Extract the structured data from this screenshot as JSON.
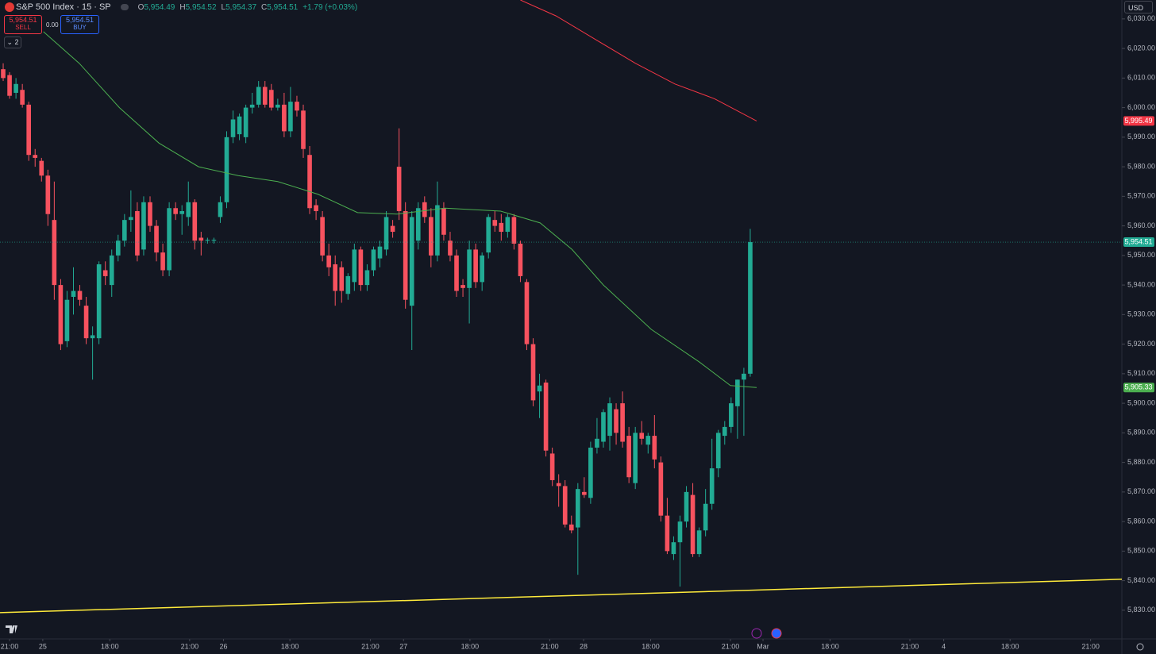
{
  "chart_data": {
    "type": "candlestick",
    "title": "S&P 500 Index · 15 · SP",
    "ohlc_legend": {
      "o_label": "O",
      "o": "5,954.49",
      "h_label": "H",
      "h": "5,954.52",
      "l_label": "L",
      "l": "5,954.37",
      "c_label": "C",
      "c": "5,954.51",
      "change": "+1.79 (+0.03%)"
    },
    "sell": {
      "price": "5,954.51",
      "label": "SELL"
    },
    "spread": "0.00",
    "buy": {
      "price": "5,954.51",
      "label": "BUY"
    },
    "indicators_toggle": "2",
    "currency": "USD",
    "up_color": "#22ab94",
    "down_color": "#f7525f",
    "xlim": [
      -0.5,
      175.2
    ],
    "ylim": [
      5820.3,
      6036.4
    ],
    "yticks": [
      {
        "value": 6030,
        "label": "6,030.00"
      },
      {
        "value": 6020,
        "label": "6,020.00"
      },
      {
        "value": 6010,
        "label": "6,010.00"
      },
      {
        "value": 6000,
        "label": "6,000.00"
      },
      {
        "value": 5990,
        "label": "5,990.00"
      },
      {
        "value": 5980,
        "label": "5,980.00"
      },
      {
        "value": 5970,
        "label": "5,970.00"
      },
      {
        "value": 5960,
        "label": "5,960.00"
      },
      {
        "value": 5950,
        "label": "5,950.00"
      },
      {
        "value": 5940,
        "label": "5,940.00"
      },
      {
        "value": 5930,
        "label": "5,930.00"
      },
      {
        "value": 5920,
        "label": "5,920.00"
      },
      {
        "value": 5910,
        "label": "5,910.00"
      },
      {
        "value": 5900,
        "label": "5,900.00"
      },
      {
        "value": 5890,
        "label": "5,890.00"
      },
      {
        "value": 5880,
        "label": "5,880.00"
      },
      {
        "value": 5870,
        "label": "5,870.00"
      },
      {
        "value": 5860,
        "label": "5,860.00"
      },
      {
        "value": 5850,
        "label": "5,850.00"
      },
      {
        "value": 5840,
        "label": "5,840.00"
      },
      {
        "value": 5830,
        "label": "5,830.00"
      }
    ],
    "xticks": [
      {
        "value": 1.0,
        "label": "21:00"
      },
      {
        "value": 6.2,
        "label": "25"
      },
      {
        "value": 16.7,
        "label": "18:00"
      },
      {
        "value": 29.2,
        "label": "21:00"
      },
      {
        "value": 34.5,
        "label": "26"
      },
      {
        "value": 44.9,
        "label": "18:00"
      },
      {
        "value": 57.5,
        "label": "21:00"
      },
      {
        "value": 62.7,
        "label": "27"
      },
      {
        "value": 73.1,
        "label": "18:00"
      },
      {
        "value": 85.6,
        "label": "21:00"
      },
      {
        "value": 90.9,
        "label": "28"
      },
      {
        "value": 101.4,
        "label": "18:00"
      },
      {
        "value": 113.9,
        "label": "21:00"
      },
      {
        "value": 119,
        "label": "Mar"
      },
      {
        "value": 129.5,
        "label": "18:00"
      },
      {
        "value": 142,
        "label": "21:00"
      },
      {
        "value": 147.3,
        "label": "4"
      },
      {
        "value": 157.7,
        "label": "18:00"
      },
      {
        "value": 170.3,
        "label": "21:00"
      }
    ],
    "candles": [
      [
        6013,
        6015,
        6009,
        6010
      ],
      [
        6011,
        6012,
        6003,
        6004
      ],
      [
        6005,
        6010,
        6003,
        6008
      ],
      [
        6006,
        6008,
        6000,
        6001
      ],
      [
        6001,
        6002,
        5982,
        5984
      ],
      [
        5984,
        5986,
        5980,
        5983
      ],
      [
        5982,
        5983,
        5975,
        5977
      ],
      [
        5977,
        5979,
        5960,
        5964
      ],
      [
        5962,
        5975,
        5935,
        5940
      ],
      [
        5940,
        5942,
        5918,
        5920
      ],
      [
        5921,
        5938,
        5919,
        5935
      ],
      [
        5936,
        5946,
        5930,
        5938
      ],
      [
        5938,
        5940,
        5933,
        5935
      ],
      [
        5933,
        5936,
        5920,
        5922
      ],
      [
        5922,
        5926,
        5908,
        5923
      ],
      [
        5922,
        5948,
        5920,
        5947
      ],
      [
        5945,
        5948,
        5940,
        5943
      ],
      [
        5940,
        5952,
        5936,
        5950
      ],
      [
        5950,
        5957,
        5948,
        5955
      ],
      [
        5955,
        5964,
        5953,
        5962
      ],
      [
        5962,
        5972,
        5958,
        5963
      ],
      [
        5965,
        5968,
        5948,
        5950
      ],
      [
        5952,
        5970,
        5950,
        5968
      ],
      [
        5968,
        5970,
        5958,
        5960
      ],
      [
        5960,
        5962,
        5948,
        5951
      ],
      [
        5951,
        5954,
        5943,
        5945
      ],
      [
        5945,
        5968,
        5943,
        5966
      ],
      [
        5966,
        5968,
        5962,
        5964
      ],
      [
        5964,
        5967,
        5957,
        5965
      ],
      [
        5963,
        5975,
        5960,
        5968
      ],
      [
        5968,
        5969,
        5952,
        5955
      ],
      [
        5956,
        5958,
        5950,
        5955
      ],
      [
        5955,
        5956,
        5954,
        5955.3
      ],
      [
        5955,
        5956,
        5954,
        5955.3
      ],
      [
        5963,
        5970,
        5961,
        5968
      ],
      [
        5968,
        5992,
        5966,
        5990
      ],
      [
        5990,
        5999,
        5988,
        5996
      ],
      [
        5991,
        5998,
        5989,
        5997
      ],
      [
        5990,
        6001,
        5988,
        6000
      ],
      [
        6000,
        6005,
        5998,
        6001
      ],
      [
        6001,
        6009,
        6000,
        6007
      ],
      [
        6007,
        6009,
        6000,
        6001
      ],
      [
        6006,
        6008,
        5999,
        6000
      ],
      [
        6000,
        6003,
        5999,
        6001
      ],
      [
        6001,
        6005,
        5990,
        5992
      ],
      [
        5992,
        6007,
        5990,
        6002
      ],
      [
        6002,
        6004,
        5997,
        5999
      ],
      [
        5999,
        6001,
        5983,
        5986
      ],
      [
        5984,
        5987,
        5964,
        5966
      ],
      [
        5967,
        5969,
        5962,
        5965
      ],
      [
        5963,
        5965,
        5948,
        5950
      ],
      [
        5950,
        5954,
        5943,
        5946
      ],
      [
        5947,
        5950,
        5933,
        5938
      ],
      [
        5946,
        5948,
        5934,
        5938
      ],
      [
        5937,
        5944,
        5935,
        5943
      ],
      [
        5941,
        5954,
        5938,
        5952
      ],
      [
        5952,
        5953,
        5938,
        5940
      ],
      [
        5940,
        5947,
        5938,
        5945
      ],
      [
        5945,
        5953,
        5943,
        5952
      ],
      [
        5949,
        5955,
        5946,
        5953
      ],
      [
        5952,
        5965,
        5950,
        5963
      ],
      [
        5960,
        5962,
        5956,
        5958
      ],
      [
        5980,
        5993,
        5962,
        5965
      ],
      [
        5965,
        5968,
        5932,
        5935
      ],
      [
        5933,
        5965,
        5918,
        5963
      ],
      [
        5955,
        5968,
        5952,
        5966
      ],
      [
        5968,
        5970,
        5961,
        5963
      ],
      [
        5963,
        5966,
        5946,
        5950
      ],
      [
        5950,
        5975,
        5948,
        5967
      ],
      [
        5966,
        5968,
        5955,
        5957
      ],
      [
        5955,
        5958,
        5948,
        5950
      ],
      [
        5950,
        5952,
        5936,
        5938
      ],
      [
        5940,
        5942,
        5936,
        5939
      ],
      [
        5939,
        5955,
        5927,
        5952
      ],
      [
        5952,
        5954,
        5939,
        5941
      ],
      [
        5941,
        5951,
        5938,
        5950
      ],
      [
        5951,
        5964,
        5949,
        5963
      ],
      [
        5962,
        5965,
        5958,
        5960
      ],
      [
        5961,
        5964,
        5955,
        5958
      ],
      [
        5958,
        5964,
        5956,
        5963
      ],
      [
        5963,
        5964,
        5952,
        5954
      ],
      [
        5954,
        5955,
        5941,
        5943
      ],
      [
        5941,
        5942,
        5918,
        5920
      ],
      [
        5920,
        5922,
        5899,
        5901
      ],
      [
        5904,
        5910,
        5895,
        5906
      ],
      [
        5907,
        5908,
        5882,
        5884
      ],
      [
        5883,
        5885,
        5872,
        5874
      ],
      [
        5873,
        5876,
        5865,
        5872
      ],
      [
        5872,
        5874,
        5858,
        5859
      ],
      [
        5859,
        5862,
        5856,
        5857
      ],
      [
        5858,
        5873,
        5842,
        5871
      ],
      [
        5870,
        5875,
        5868,
        5869
      ],
      [
        5868,
        5887,
        5866,
        5885
      ],
      [
        5885,
        5895,
        5883,
        5888
      ],
      [
        5887,
        5898,
        5885,
        5897
      ],
      [
        5889,
        5902,
        5884,
        5900
      ],
      [
        5898,
        5900,
        5886,
        5890
      ],
      [
        5900,
        5904,
        5885,
        5887
      ],
      [
        5889,
        5892,
        5873,
        5875
      ],
      [
        5873,
        5892,
        5871,
        5890
      ],
      [
        5890,
        5894,
        5886,
        5888
      ],
      [
        5886,
        5890,
        5883,
        5889
      ],
      [
        5889,
        5896,
        5878,
        5881
      ],
      [
        5880,
        5882,
        5860,
        5862
      ],
      [
        5862,
        5868,
        5849,
        5850
      ],
      [
        5849,
        5855,
        5847,
        5853
      ],
      [
        5853,
        5862,
        5838,
        5860
      ],
      [
        5860,
        5872,
        5858,
        5870
      ],
      [
        5869,
        5873,
        5848,
        5849
      ],
      [
        5849,
        5858,
        5848,
        5857
      ],
      [
        5857,
        5871,
        5855,
        5866
      ],
      [
        5866,
        5888,
        5864,
        5878
      ],
      [
        5878,
        5891,
        5875,
        5890
      ],
      [
        5889,
        5894,
        5886,
        5892
      ],
      [
        5892,
        5902,
        5890,
        5900
      ],
      [
        5899,
        5908,
        5888,
        5908
      ],
      [
        5908,
        5912,
        5889,
        5910
      ],
      [
        5910,
        5959,
        5909,
        5954.51
      ]
    ],
    "lines": [
      {
        "color": "#4caf50",
        "x": [
          6.3,
          11.9,
          18.2,
          24.4,
          30.6,
          36.8,
          43,
          49.3,
          55.5,
          61.7,
          69.2,
          77.9,
          84.1,
          89.1,
          94,
          101.5,
          109,
          113.9,
          118
        ],
        "values": [
          6025.7,
          6015,
          6000,
          5988,
          5980,
          5977,
          5975,
          5970.7,
          5964.5,
          5964,
          5966,
          5965,
          5961,
          5952,
          5940,
          5925,
          5914,
          5906,
          5905.33
        ]
      },
      {
        "color": "#f23645",
        "x": [
          81,
          86.6,
          92.8,
          99,
          105.2,
          111.4,
          118
        ],
        "values": [
          6036.4,
          6031,
          6023,
          6015,
          6008,
          6003,
          5995.49
        ]
      },
      {
        "color": "#ffeb3b",
        "x": [
          -0.5,
          175.2
        ],
        "values": [
          5829.2,
          5840.5
        ]
      }
    ],
    "price_labels": [
      {
        "value": 5995.49,
        "label": "5,995.49",
        "color": "#f23645"
      },
      {
        "value": 5954.51,
        "label": "5,954.51",
        "color": "#22ab94"
      },
      {
        "value": 5905.33,
        "label": "5,905.33",
        "color": "#4caf50"
      }
    ],
    "last_price_line": 5954.51
  }
}
